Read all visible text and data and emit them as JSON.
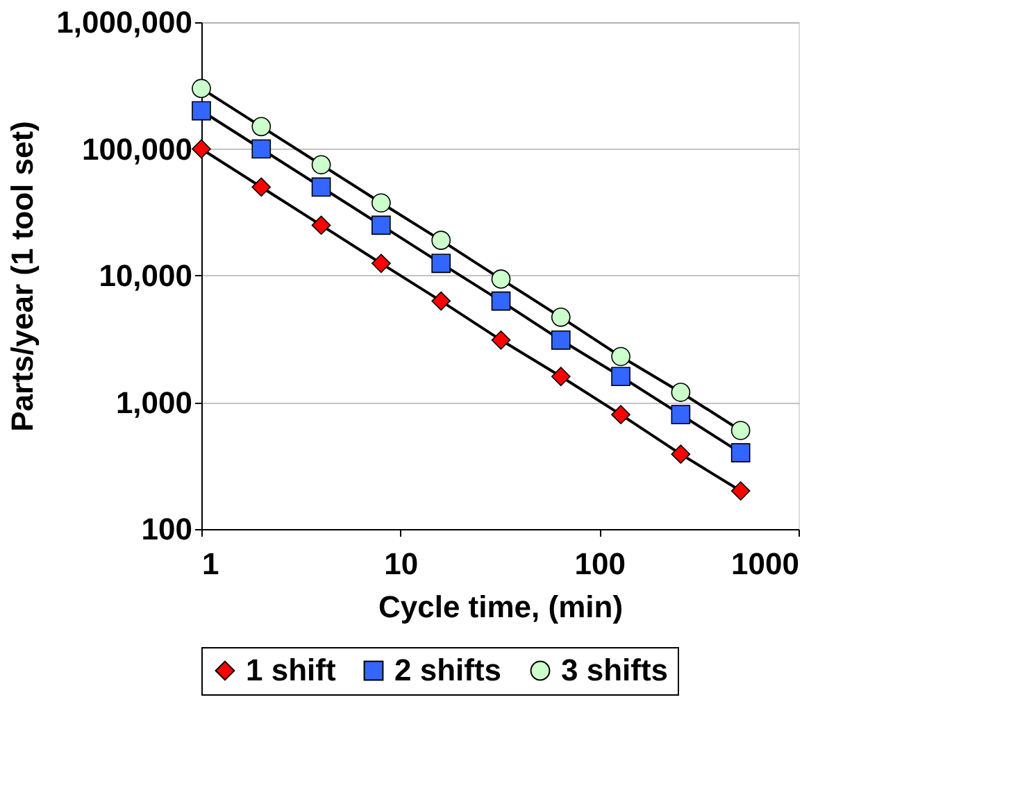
{
  "chart_data": {
    "type": "line",
    "xlabel": "Cycle time, (min)",
    "ylabel": "Parts/year (1 tool set)",
    "log": "xy",
    "grid": "y",
    "legend": "bottom",
    "x": [
      1,
      2,
      4,
      8,
      16,
      32,
      64,
      128,
      256,
      512
    ],
    "xlim": [
      1,
      1000
    ],
    "xticks": [
      1,
      10,
      100,
      1000
    ],
    "ylim": [
      100,
      1000000
    ],
    "yticks": [
      {
        "value": 100,
        "label": "100"
      },
      {
        "value": 1000,
        "label": "1,000"
      },
      {
        "value": 10000,
        "label": "10,000"
      },
      {
        "value": 100000,
        "label": "100,000"
      },
      {
        "value": 1000000,
        "label": "1,000,000"
      }
    ],
    "series": [
      {
        "name": "1 shift",
        "color": "#ff0000",
        "marker": "diamond",
        "values": [
          100000,
          50000,
          25000,
          12500,
          6300,
          3100,
          1600,
          800,
          390,
          200
        ]
      },
      {
        "name": "2 shifts",
        "color": "#3366ff",
        "marker": "square",
        "values": [
          200000,
          100000,
          50000,
          25000,
          12500,
          6300,
          3100,
          1600,
          800,
          400
        ]
      },
      {
        "name": "3 shifts",
        "color": "#ccffcc",
        "marker": "circle",
        "values": [
          300000,
          150000,
          75000,
          37500,
          19000,
          9400,
          4700,
          2300,
          1200,
          600
        ]
      }
    ]
  }
}
